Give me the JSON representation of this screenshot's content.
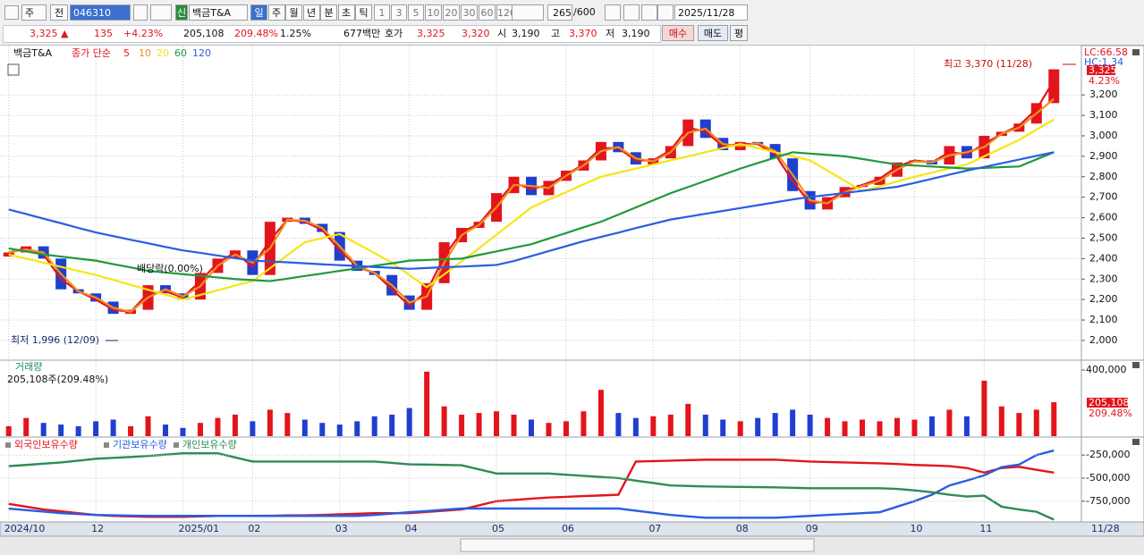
{
  "toolbar": {
    "period": "주",
    "prev": "전",
    "code": "046310",
    "badge": "신",
    "name": "백금T&A",
    "intervals": [
      "일",
      "주",
      "월",
      "년",
      "분",
      "초",
      "틱"
    ],
    "numbers": [
      "1",
      "3",
      "5",
      "10",
      "20",
      "30",
      "60",
      "120"
    ],
    "count": "265",
    "max": "/600",
    "date": "2025/11/28",
    "quote": [
      "3,325 ▲",
      "135",
      "+4.23%",
      "205,108",
      "209.48%",
      "1.25%",
      "677백만",
      "호가",
      "3,325",
      "3,320",
      "시",
      "3,190",
      "고",
      "3,370",
      "저",
      "3,190"
    ],
    "buttons": [
      "매수",
      "매도",
      "평"
    ]
  },
  "chart_data": [
    {
      "type": "candlestick",
      "title": "백금T&A",
      "subtitle": "종가 단순",
      "categories": [
        "2024/10",
        null,
        null,
        null,
        null,
        "12",
        null,
        null,
        null,
        null,
        "2025/01",
        null,
        null,
        null,
        "02",
        null,
        null,
        null,
        null,
        "03",
        null,
        null,
        null,
        "04",
        null,
        null,
        null,
        null,
        "05",
        null,
        null,
        null,
        "06",
        null,
        null,
        null,
        null,
        "07",
        null,
        null,
        null,
        null,
        "08",
        null,
        null,
        null,
        "09",
        null,
        null,
        null,
        null,
        null,
        "10",
        null,
        null,
        null,
        "11",
        null,
        null,
        null,
        null
      ],
      "x_end_label": "11/28",
      "open": [
        2410,
        2430,
        2460,
        2400,
        2250,
        2230,
        2190,
        2130,
        2150,
        2270,
        2230,
        2200,
        2330,
        2400,
        2440,
        2320,
        2580,
        2600,
        2570,
        2530,
        2390,
        2340,
        2320,
        2220,
        2150,
        2280,
        2480,
        2550,
        2580,
        2720,
        2800,
        2710,
        2780,
        2830,
        2880,
        2970,
        2920,
        2860,
        2890,
        2950,
        3080,
        2990,
        2930,
        2970,
        2960,
        2890,
        2730,
        2640,
        2700,
        2750,
        2760,
        2800,
        2870,
        2880,
        2860,
        2950,
        2890,
        3000,
        3020,
        3060,
        3160
      ],
      "close": [
        2430,
        2460,
        2400,
        2250,
        2230,
        2190,
        2130,
        2150,
        2270,
        2230,
        2200,
        2330,
        2400,
        2440,
        2320,
        2580,
        2600,
        2570,
        2530,
        2390,
        2340,
        2320,
        2220,
        2150,
        2280,
        2480,
        2550,
        2580,
        2720,
        2800,
        2710,
        2780,
        2830,
        2880,
        2970,
        2920,
        2860,
        2890,
        2950,
        3080,
        2990,
        2930,
        2970,
        2960,
        2890,
        2730,
        2640,
        2700,
        2750,
        2760,
        2800,
        2870,
        2880,
        2860,
        2950,
        2890,
        3000,
        3020,
        3060,
        3160,
        3325
      ],
      "up_color": "#e3141c",
      "down_color": "#1f3fd0",
      "series": [
        {
          "name": "5",
          "color": "#e3141c",
          "values": [
            2430,
            2450,
            2420,
            2300,
            2240,
            2200,
            2150,
            2140,
            2230,
            2240,
            2210,
            2290,
            2380,
            2430,
            2360,
            2490,
            2590,
            2580,
            2540,
            2440,
            2360,
            2330,
            2250,
            2170,
            2240,
            2410,
            2530,
            2570,
            2670,
            2770,
            2740,
            2760,
            2810,
            2860,
            2940,
            2940,
            2880,
            2880,
            2930,
            3040,
            3020,
            2950,
            2960,
            2960,
            2910,
            2780,
            2670,
            2680,
            2730,
            2760,
            2790,
            2850,
            2880,
            2870,
            2920,
            2910,
            2960,
            3010,
            3050,
            3130,
            3270
          ]
        },
        {
          "name": "10",
          "color": "#f0901e",
          "values": [
            2430,
            2445,
            2430,
            2325,
            2240,
            2210,
            2160,
            2140,
            2210,
            2250,
            2215,
            2265,
            2365,
            2420,
            2380,
            2450,
            2590,
            2585,
            2550,
            2460,
            2365,
            2330,
            2270,
            2185,
            2215,
            2380,
            2515,
            2565,
            2650,
            2760,
            2755,
            2745,
            2805,
            2855,
            2925,
            2945,
            2890,
            2875,
            2920,
            3015,
            3035,
            2960,
            2950,
            2965,
            2925,
            2810,
            2685,
            2670,
            2725,
            2755,
            2780,
            2835,
            2875,
            2870,
            2905,
            2920,
            2945,
            3010,
            3040,
            3110,
            3180
          ]
        },
        {
          "name": "20",
          "color": "#f5e614",
          "values": [
            2420,
            2400,
            2380,
            2360,
            2340,
            2320,
            2296,
            2272,
            2248,
            2224,
            2200,
            2223,
            2245,
            2268,
            2290,
            2353,
            2417,
            2480,
            2500,
            2520,
            2473,
            2427,
            2380,
            2320,
            2260,
            2323,
            2387,
            2450,
            2517,
            2583,
            2650,
            2688,
            2725,
            2763,
            2800,
            2820,
            2840,
            2860,
            2880,
            2900,
            2920,
            2940,
            2960,
            2940,
            2920,
            2900,
            2880,
            2830,
            2780,
            2730,
            2753,
            2777,
            2800,
            2820,
            2840,
            2860,
            2900,
            2940,
            2980,
            3030,
            3080
          ]
        },
        {
          "name": "60",
          "color": "#1e9a3c",
          "values": [
            2450,
            2435,
            2420,
            2410,
            2400,
            2390,
            2373,
            2357,
            2340,
            2332,
            2324,
            2316,
            2308,
            2300,
            2295,
            2290,
            2302,
            2315,
            2327,
            2340,
            2352,
            2365,
            2377,
            2390,
            2393,
            2397,
            2400,
            2418,
            2435,
            2453,
            2470,
            2498,
            2525,
            2553,
            2580,
            2615,
            2650,
            2685,
            2720,
            2750,
            2780,
            2810,
            2840,
            2867,
            2893,
            2920,
            2913,
            2907,
            2900,
            2887,
            2873,
            2860,
            2855,
            2850,
            2845,
            2840,
            2843,
            2847,
            2850,
            2885,
            2920
          ]
        },
        {
          "name": "120",
          "color": "#2a5de0",
          "values": [
            2640,
            2618,
            2595,
            2573,
            2550,
            2528,
            2510,
            2492,
            2475,
            2457,
            2440,
            2428,
            2415,
            2402,
            2390,
            2386,
            2382,
            2377,
            2372,
            2368,
            2364,
            2359,
            2355,
            2350,
            2354,
            2358,
            2361,
            2365,
            2369,
            2388,
            2412,
            2437,
            2461,
            2485,
            2506,
            2527,
            2549,
            2570,
            2591,
            2605,
            2619,
            2633,
            2647,
            2661,
            2675,
            2689,
            2701,
            2711,
            2721,
            2731,
            2741,
            2751,
            2770,
            2790,
            2810,
            2830,
            2848,
            2866,
            2884,
            2902,
            2920
          ]
        }
      ],
      "ylim": [
        1908,
        3428
      ],
      "yticks": [
        {
          "value": 2000,
          "label": "2,000"
        },
        {
          "value": 2100,
          "label": "2,100"
        },
        {
          "value": 2200,
          "label": "2,200"
        },
        {
          "value": 2300,
          "label": "2,300"
        },
        {
          "value": 2400,
          "label": "2,400"
        },
        {
          "value": 2500,
          "label": "2,500"
        },
        {
          "value": 2600,
          "label": "2,600"
        },
        {
          "value": 2700,
          "label": "2,700"
        },
        {
          "value": 2800,
          "label": "2,800"
        },
        {
          "value": 2900,
          "label": "2,900"
        },
        {
          "value": 3000,
          "label": "3,000"
        },
        {
          "value": 3100,
          "label": "3,100"
        },
        {
          "value": 3200,
          "label": "3,200"
        }
      ],
      "grid": true,
      "annotations": [
        "최고 3,370 (11/28)",
        "최저 1,996 (12/09)",
        "배당락(0.00%)"
      ],
      "side_labels": {
        "lc": "LC:66.58",
        "hc": "HC:1.34",
        "price": "3,325",
        "change": "4.23%"
      }
    },
    {
      "type": "bar",
      "title": "거래량",
      "subtitle": "205,108주(209.48%)",
      "values": [
        60000,
        110000,
        80000,
        70000,
        60000,
        90000,
        100000,
        60000,
        120000,
        70000,
        50000,
        80000,
        110000,
        130000,
        90000,
        160000,
        140000,
        100000,
        80000,
        70000,
        90000,
        120000,
        130000,
        170000,
        390000,
        180000,
        130000,
        140000,
        150000,
        130000,
        100000,
        80000,
        90000,
        150000,
        280000,
        140000,
        110000,
        120000,
        130000,
        195000,
        130000,
        100000,
        90000,
        110000,
        140000,
        160000,
        130000,
        110000,
        90000,
        100000,
        90000,
        110000,
        100000,
        120000,
        160000,
        120000,
        335000,
        180000,
        140000,
        160000,
        205108
      ],
      "ylim": [
        0,
        454000
      ],
      "yticks": [
        {
          "value": 400000,
          "label": "400,000"
        }
      ],
      "side_labels": {
        "volume": "205,108",
        "ratio": "209.48%"
      }
    },
    {
      "type": "line",
      "series": [
        {
          "name": "외국인보유수량",
          "color": "#e3141c",
          "values": [
            -780000,
            -810000,
            -840000,
            -860000,
            -880000,
            -900000,
            -910000,
            -915000,
            -920000,
            -920000,
            -920000,
            -915000,
            -910000,
            -910000,
            -910000,
            -908000,
            -905000,
            -903000,
            -900000,
            -893000,
            -887000,
            -880000,
            -880000,
            -880000,
            -867000,
            -853000,
            -840000,
            -795000,
            -750000,
            -737000,
            -723000,
            -710000,
            -703000,
            -695000,
            -688000,
            -680000,
            -320000,
            -315000,
            -310000,
            -305000,
            -300000,
            -300000,
            -300000,
            -300000,
            -300000,
            -310000,
            -320000,
            -325000,
            -330000,
            -335000,
            -340000,
            -347000,
            -357000,
            -363000,
            -370000,
            -390000,
            -440000,
            -390000,
            -377000,
            -410000,
            -440000
          ]
        },
        {
          "name": "기관보유수량",
          "color": "#2a5de0",
          "values": [
            -830000,
            -847000,
            -863000,
            -880000,
            -890000,
            -900000,
            -903000,
            -907000,
            -910000,
            -910000,
            -910000,
            -910000,
            -910000,
            -910000,
            -910000,
            -910000,
            -910000,
            -910000,
            -910000,
            -910000,
            -910000,
            -900000,
            -885000,
            -870000,
            -857000,
            -843000,
            -830000,
            -830000,
            -830000,
            -830000,
            -830000,
            -830000,
            -830000,
            -830000,
            -830000,
            -830000,
            -853000,
            -877000,
            -900000,
            -915000,
            -930000,
            -930000,
            -930000,
            -930000,
            -930000,
            -920000,
            -910000,
            -900000,
            -890000,
            -880000,
            -870000,
            -810000,
            -750000,
            -680000,
            -580000,
            -527000,
            -470000,
            -380000,
            -353000,
            -250000,
            -200000
          ]
        },
        {
          "name": "개인보유수량",
          "color": "#2e8b57",
          "values": [
            -370000,
            -357000,
            -343000,
            -330000,
            -310000,
            -290000,
            -280000,
            -270000,
            -260000,
            -245000,
            -230000,
            -230000,
            -230000,
            -275000,
            -320000,
            -320000,
            -320000,
            -320000,
            -320000,
            -320000,
            -320000,
            -320000,
            -335000,
            -350000,
            -353000,
            -357000,
            -360000,
            -405000,
            -450000,
            -450000,
            -450000,
            -450000,
            -463000,
            -475000,
            -488000,
            -500000,
            -527000,
            -553000,
            -580000,
            -585000,
            -590000,
            -593000,
            -595000,
            -598000,
            -600000,
            -605000,
            -610000,
            -610000,
            -610000,
            -610000,
            -610000,
            -617000,
            -633000,
            -653000,
            -680000,
            -700000,
            -690000,
            -810000,
            -840000,
            -865000,
            -950000
          ]
        }
      ],
      "ylim": [
        -965700,
        -63700
      ],
      "yticks": [
        {
          "value": -250000,
          "label": "-250,000"
        },
        {
          "value": -500000,
          "label": "-500,000"
        },
        {
          "value": -750000,
          "label": "-750,000"
        }
      ]
    }
  ]
}
